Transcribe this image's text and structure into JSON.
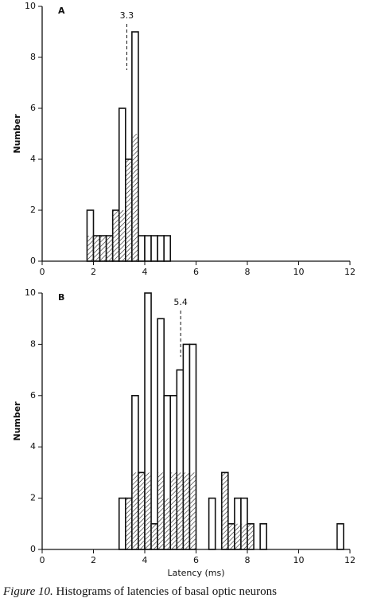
{
  "chart_data": [
    {
      "type": "histogram",
      "panel_label": "A",
      "y_label": "Number",
      "bins": [
        1.75,
        2,
        2.25,
        2.5,
        2.75,
        3,
        3.25,
        3.5,
        3.75,
        4,
        4.25,
        4.5,
        4.75,
        5
      ],
      "values": [
        2,
        1,
        1,
        1,
        2,
        6,
        4,
        9,
        1,
        1,
        1,
        1,
        1
      ],
      "hatched_values": [
        1,
        1,
        1,
        1,
        2,
        2,
        4,
        5,
        0,
        0,
        0,
        0,
        0
      ],
      "annotation": {
        "value": 3.3,
        "label": "3.3"
      },
      "xlim": [
        0,
        12
      ],
      "xticks": [
        0,
        2,
        4,
        6,
        8,
        10,
        12
      ],
      "ylim": [
        0,
        10
      ],
      "yticks": [
        0,
        2,
        4,
        6,
        8,
        10
      ]
    },
    {
      "type": "histogram",
      "panel_label": "B",
      "y_label": "Number",
      "x_label": "Latency (ms)",
      "bins": [
        3,
        3.25,
        3.5,
        3.75,
        4,
        4.25,
        4.5,
        4.75,
        5,
        5.25,
        5.5,
        5.75,
        6,
        6.25,
        6.5,
        6.75,
        7,
        7.25,
        7.5,
        7.75,
        8,
        8.25,
        8.5,
        8.75,
        9,
        9.25,
        9.5,
        9.75,
        10,
        10.25,
        10.5,
        10.75,
        11,
        11.25,
        11.5,
        11.75,
        12
      ],
      "values": [
        2,
        2,
        6,
        3,
        10,
        1,
        9,
        6,
        6,
        7,
        8,
        8,
        0,
        0,
        2,
        0,
        3,
        1,
        2,
        2,
        1,
        0,
        1,
        0,
        0,
        0,
        0,
        0,
        0,
        0,
        0,
        0,
        0,
        0,
        1,
        0
      ],
      "hatched_values": [
        0,
        2,
        3,
        3,
        3,
        1,
        3,
        2,
        3,
        3,
        3,
        3,
        0,
        0,
        0,
        0,
        3,
        1,
        1,
        1,
        1,
        0,
        0,
        0,
        0,
        0,
        0,
        0,
        0,
        0,
        0,
        0,
        0,
        0,
        0,
        0
      ],
      "annotation": {
        "value": 5.4,
        "label": "5.4"
      },
      "xlim": [
        0,
        12
      ],
      "xticks": [
        0,
        2,
        4,
        6,
        8,
        10,
        12
      ],
      "ylim": [
        0,
        10
      ],
      "yticks": [
        0,
        2,
        4,
        6,
        8,
        10
      ]
    }
  ],
  "caption": {
    "label": "Figure 10.",
    "text": "Histograms of latencies of basal optic neurons"
  }
}
